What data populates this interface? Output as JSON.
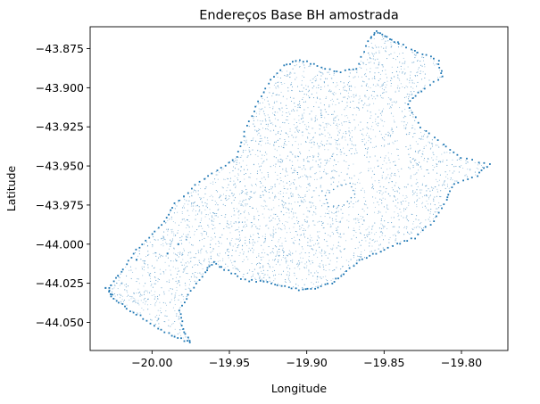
{
  "chart_data": {
    "type": "scatter",
    "title": "Endereços Base BH amostrada",
    "xlabel": "Longitude",
    "ylabel": "Latitude",
    "xlim": [
      -20.04,
      -19.77
    ],
    "ylim": [
      -44.068,
      -43.861
    ],
    "xticks": [
      -20.0,
      -19.95,
      -19.9,
      -19.85,
      -19.8
    ],
    "xtick_labels": [
      "−20.00",
      "−19.95",
      "−19.90",
      "−19.85",
      "−19.80"
    ],
    "yticks": [
      -43.875,
      -43.9,
      -43.925,
      -43.95,
      -43.975,
      -44.0,
      -44.025,
      -44.05
    ],
    "ytick_labels": [
      "−43.875",
      "−43.900",
      "−43.925",
      "−43.950",
      "−43.975",
      "−44.000",
      "−44.025",
      "−44.050"
    ],
    "grid": false,
    "point_color": "#1f77b4",
    "region_outline": [
      [
        -20.028,
        -44.028
      ],
      [
        -20.02,
        -44.018
      ],
      [
        -20.012,
        -44.006
      ],
      [
        -20.002,
        -43.996
      ],
      [
        -19.992,
        -43.985
      ],
      [
        -19.985,
        -43.974
      ],
      [
        -19.972,
        -43.962
      ],
      [
        -19.958,
        -43.953
      ],
      [
        -19.945,
        -43.944
      ],
      [
        -19.94,
        -43.928
      ],
      [
        -19.933,
        -43.912
      ],
      [
        -19.925,
        -43.897
      ],
      [
        -19.915,
        -43.886
      ],
      [
        -19.905,
        -43.882
      ],
      [
        -19.893,
        -43.886
      ],
      [
        -19.88,
        -43.89
      ],
      [
        -19.868,
        -43.888
      ],
      [
        -19.86,
        -43.87
      ],
      [
        -19.855,
        -43.864
      ],
      [
        -19.848,
        -43.868
      ],
      [
        -19.84,
        -43.872
      ],
      [
        -19.828,
        -43.877
      ],
      [
        -19.815,
        -43.883
      ],
      [
        -19.812,
        -43.893
      ],
      [
        -19.826,
        -43.902
      ],
      [
        -19.835,
        -43.91
      ],
      [
        -19.826,
        -43.925
      ],
      [
        -19.812,
        -43.936
      ],
      [
        -19.8,
        -43.945
      ],
      [
        -19.782,
        -43.949
      ],
      [
        -19.79,
        -43.956
      ],
      [
        -19.805,
        -43.962
      ],
      [
        -19.81,
        -43.972
      ],
      [
        -19.818,
        -43.985
      ],
      [
        -19.83,
        -43.996
      ],
      [
        -19.842,
        -44.0
      ],
      [
        -19.855,
        -44.006
      ],
      [
        -19.866,
        -44.01
      ],
      [
        -19.876,
        -44.019
      ],
      [
        -19.884,
        -44.025
      ],
      [
        -19.895,
        -44.028
      ],
      [
        -19.905,
        -44.029
      ],
      [
        -19.916,
        -44.027
      ],
      [
        -19.928,
        -44.024
      ],
      [
        -19.94,
        -44.023
      ],
      [
        -19.951,
        -44.017
      ],
      [
        -19.96,
        -44.012
      ],
      [
        -19.966,
        -44.018
      ],
      [
        -19.975,
        -44.03
      ],
      [
        -19.982,
        -44.042
      ],
      [
        -19.98,
        -44.054
      ],
      [
        -19.975,
        -44.063
      ],
      [
        -19.985,
        -44.059
      ],
      [
        -19.996,
        -44.054
      ],
      [
        -20.008,
        -44.046
      ],
      [
        -20.018,
        -44.04
      ],
      [
        -20.026,
        -44.034
      ]
    ],
    "holes": [
      [
        [
          -19.888,
          -43.969
        ],
        [
          -19.88,
          -43.963
        ],
        [
          -19.872,
          -43.961
        ],
        [
          -19.869,
          -43.968
        ],
        [
          -19.876,
          -43.975
        ],
        [
          -19.886,
          -43.976
        ]
      ]
    ],
    "void_lines": [
      [
        [
          -19.868,
          -43.93
        ],
        [
          -19.862,
          -43.955
        ],
        [
          -19.858,
          -43.982
        ]
      ],
      [
        [
          -19.842,
          -43.912
        ],
        [
          -19.838,
          -43.938
        ],
        [
          -19.835,
          -43.96
        ]
      ]
    ],
    "outliers": [
      [
        -20.01,
        -44.01
      ],
      [
        -19.99,
        -44.006
      ],
      [
        -19.983,
        -44.0
      ],
      [
        -20.03,
        -44.028
      ]
    ]
  }
}
